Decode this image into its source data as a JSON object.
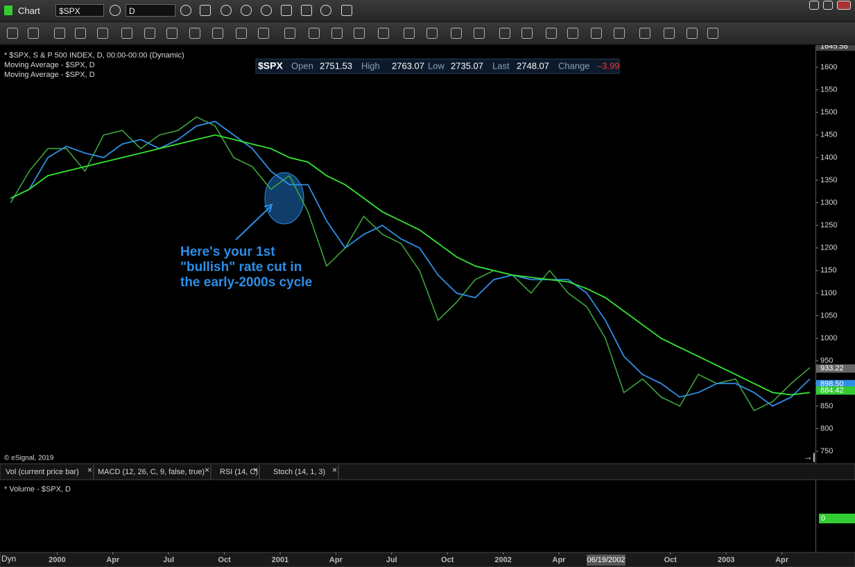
{
  "toolbar": {
    "title": "Chart",
    "symbol": "$SPX",
    "interval": "D"
  },
  "quote": {
    "symbol": "$SPX",
    "fields": [
      {
        "label": "Open",
        "value": "2751.53"
      },
      {
        "label": "High",
        "value": "2763.07"
      },
      {
        "label": "Low",
        "value": "2735.07"
      },
      {
        "label": "Last",
        "value": "2748.07"
      },
      {
        "label": "Change",
        "value": "–3.99"
      }
    ]
  },
  "annotation": [
    "Here's your 1st",
    "\"bullish\" rate cut in",
    "the early-2000s cycle"
  ],
  "copyright": "© eSignal, 2019",
  "tabs": [
    "Vol (current price bar)",
    "MACD (12, 26, C, 9, false, true)",
    "RSI (14, C)",
    "Stoch (14, 1, 3)"
  ],
  "volume_pane": {
    "label": "* Volume - $SPX, D",
    "axis_label": "0"
  },
  "footer": {
    "mode": "Dyn",
    "cursor_date": "06/19/2002"
  },
  "chart_data": {
    "type": "line",
    "categories": [
      null,
      null,
      null,
      "2000",
      null,
      null,
      "Apr",
      null,
      null,
      "Jul",
      null,
      null,
      "Oct",
      null,
      null,
      "2001",
      null,
      null,
      "Apr",
      null,
      null,
      "Jul",
      null,
      null,
      "Oct",
      null,
      null,
      "2002",
      null,
      null,
      "Apr",
      null,
      null,
      null,
      null,
      null,
      "Oct",
      null,
      null,
      "2003",
      null,
      null,
      "Apr",
      null
    ],
    "series": [
      {
        "name": "* $SPX, S & P 500 INDEX, D, 00:00-00:00 (Dynamic)",
        "color": "#3fae3f",
        "values": [
          1300,
          1370,
          1420,
          1420,
          1370,
          1450,
          1460,
          1420,
          1450,
          1460,
          1490,
          1470,
          1400,
          1380,
          1330,
          1360,
          1280,
          1160,
          1200,
          1270,
          1230,
          1210,
          1150,
          1040,
          1080,
          1130,
          1150,
          1140,
          1100,
          1150,
          1100,
          1070,
          1000,
          880,
          910,
          870,
          850,
          920,
          900,
          910,
          840,
          860,
          900,
          935
        ]
      },
      {
        "name": "Moving Average - $SPX, D",
        "color": "#2f8fe6",
        "values": [
          1310,
          1330,
          1400,
          1425,
          1410,
          1400,
          1430,
          1440,
          1420,
          1440,
          1470,
          1480,
          1450,
          1420,
          1370,
          1340,
          1340,
          1260,
          1200,
          1230,
          1250,
          1220,
          1200,
          1140,
          1100,
          1090,
          1130,
          1140,
          1130,
          1130,
          1130,
          1100,
          1040,
          960,
          920,
          900,
          870,
          880,
          900,
          900,
          880,
          850,
          870,
          910
        ]
      },
      {
        "name": "Moving Average - $SPX, D",
        "color": "#33e633",
        "values": [
          1310,
          1330,
          1360,
          1370,
          1380,
          1390,
          1400,
          1410,
          1420,
          1430,
          1440,
          1450,
          1440,
          1430,
          1420,
          1400,
          1390,
          1360,
          1340,
          1310,
          1280,
          1260,
          1240,
          1210,
          1180,
          1160,
          1150,
          1140,
          1135,
          1130,
          1125,
          1110,
          1090,
          1060,
          1030,
          1000,
          980,
          960,
          940,
          920,
          900,
          880,
          875,
          880
        ]
      }
    ],
    "ylim": [
      724,
      1645.58
    ],
    "yticks": [
      750,
      800,
      850,
      900,
      950,
      1000,
      1050,
      1100,
      1150,
      1200,
      1250,
      1300,
      1350,
      1400,
      1450,
      1500,
      1550,
      1600
    ],
    "axis_markers": [
      {
        "value": 1645.58,
        "label": "1645.58",
        "color": "#444444"
      },
      {
        "value": 933.22,
        "label": "933.22",
        "color": "#666666"
      },
      {
        "value": 898.5,
        "label": "898.50",
        "color": "#2f8fe6"
      },
      {
        "value": 884.42,
        "label": "884.42",
        "color": "#33cc33"
      }
    ],
    "grid": false
  }
}
